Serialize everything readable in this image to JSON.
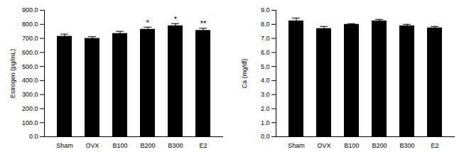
{
  "chart_data": [
    {
      "type": "bar",
      "y_label": "Estrogen (pg/mL)",
      "categories": [
        "Sham",
        "OVX",
        "B100",
        "B200",
        "B300",
        "E2"
      ],
      "values": [
        715,
        700,
        735,
        765,
        790,
        757
      ],
      "errors": [
        15,
        12,
        15,
        15,
        15,
        15
      ],
      "color": "#000000",
      "ylim": [
        0,
        900
      ],
      "yticks": [
        {
          "value": 0,
          "label": "0.0"
        },
        {
          "value": 100,
          "label": "100.0"
        },
        {
          "value": 200,
          "label": "200.0"
        },
        {
          "value": 300,
          "label": "300.0"
        },
        {
          "value": 400,
          "label": "400.0"
        },
        {
          "value": 500,
          "label": "500.0"
        },
        {
          "value": 600,
          "label": "600.0"
        },
        {
          "value": 700,
          "label": "700.0"
        },
        {
          "value": 800,
          "label": "800.0"
        },
        {
          "value": 900,
          "label": "900.0"
        }
      ],
      "grid": false,
      "annotations": [
        {
          "category": "B200",
          "text": "*"
        },
        {
          "category": "B300",
          "text": "*"
        },
        {
          "category": "E2",
          "text": "**"
        }
      ]
    },
    {
      "type": "bar",
      "y_label": "Ca (mg/dl)",
      "categories": [
        "Sham",
        "OVX",
        "B100",
        "B200",
        "B300",
        "E2"
      ],
      "values": [
        8.25,
        7.7,
        8.0,
        8.25,
        7.9,
        7.75
      ],
      "errors": [
        0.2,
        0.15,
        0.05,
        0.1,
        0.1,
        0.1
      ],
      "color": "#000000",
      "ylim": [
        0,
        9
      ],
      "yticks": [
        {
          "value": 0,
          "label": "0.0"
        },
        {
          "value": 1,
          "label": "1.0"
        },
        {
          "value": 2,
          "label": "2.0"
        },
        {
          "value": 3,
          "label": "3.0"
        },
        {
          "value": 4,
          "label": "4.0"
        },
        {
          "value": 5,
          "label": "5.0"
        },
        {
          "value": 6,
          "label": "6.0"
        },
        {
          "value": 7,
          "label": "7.0"
        },
        {
          "value": 8,
          "label": "8.0"
        },
        {
          "value": 9,
          "label": "9.0"
        }
      ],
      "grid": false
    }
  ]
}
